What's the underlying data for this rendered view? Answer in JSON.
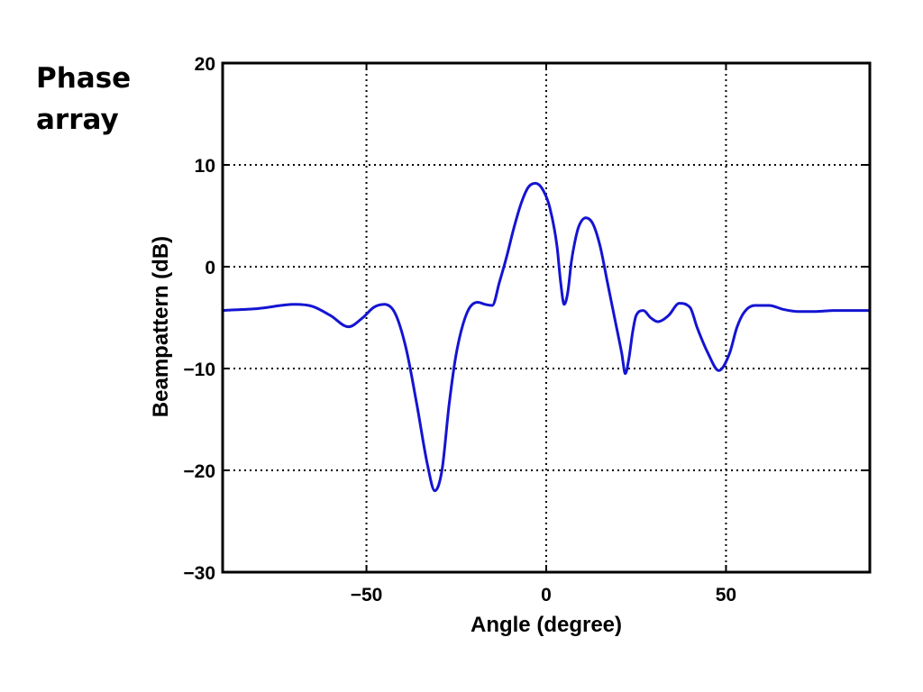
{
  "slide": {
    "title_lines": [
      "Phase",
      "array"
    ]
  },
  "chart_data": {
    "type": "line",
    "xlabel": "Angle (degree)",
    "ylabel": "Beampattern (dB)",
    "xlim": [
      -90,
      90
    ],
    "ylim": [
      -30,
      20
    ],
    "xticks": [
      -50,
      0,
      50
    ],
    "yticks": [
      -30,
      -20,
      -10,
      0,
      10,
      20
    ],
    "x_tick_labels": [
      "−50",
      "0",
      "50"
    ],
    "y_tick_labels": [
      "−30",
      "−20",
      "−10",
      "0",
      "10",
      "20"
    ],
    "grid": true,
    "grid_style": "dotted",
    "series": [
      {
        "color": "#1414d2",
        "x": [
          -90,
          -80,
          -70,
          -65,
          -60,
          -55,
          -51,
          -48,
          -45,
          -42,
          -39,
          -36,
          -33,
          -31,
          -29,
          -27,
          -25,
          -22,
          -19,
          -17,
          -15,
          -13,
          -11,
          -9,
          -7,
          -5,
          -3,
          -1,
          1,
          3,
          4,
          5,
          6,
          7,
          8,
          9,
          11,
          13,
          15,
          17,
          19,
          21,
          22,
          23,
          24,
          25,
          27,
          29,
          31,
          34,
          37,
          40,
          42,
          45,
          48,
          51,
          53,
          55,
          58,
          62,
          66,
          70,
          75,
          80,
          85,
          90
        ],
        "y": [
          -4.3,
          -4.1,
          -3.7,
          -3.9,
          -4.8,
          -5.9,
          -5.0,
          -4.0,
          -3.7,
          -4.6,
          -8.0,
          -13.5,
          -19.5,
          -22.0,
          -20.0,
          -13.5,
          -8.5,
          -4.5,
          -3.5,
          -3.7,
          -3.8,
          -1.5,
          1.0,
          3.8,
          6.2,
          7.8,
          8.2,
          7.6,
          5.8,
          2.0,
          -1.5,
          -3.7,
          -2.5,
          0.5,
          2.5,
          3.9,
          4.8,
          4.2,
          2.0,
          -1.5,
          -5.0,
          -8.5,
          -10.5,
          -9.0,
          -6.5,
          -4.8,
          -4.3,
          -5.0,
          -5.4,
          -4.8,
          -3.6,
          -4.0,
          -6.0,
          -8.5,
          -10.2,
          -8.5,
          -6.0,
          -4.5,
          -3.8,
          -3.8,
          -4.2,
          -4.4,
          -4.4,
          -4.3,
          -4.3,
          -4.3
        ]
      }
    ]
  }
}
